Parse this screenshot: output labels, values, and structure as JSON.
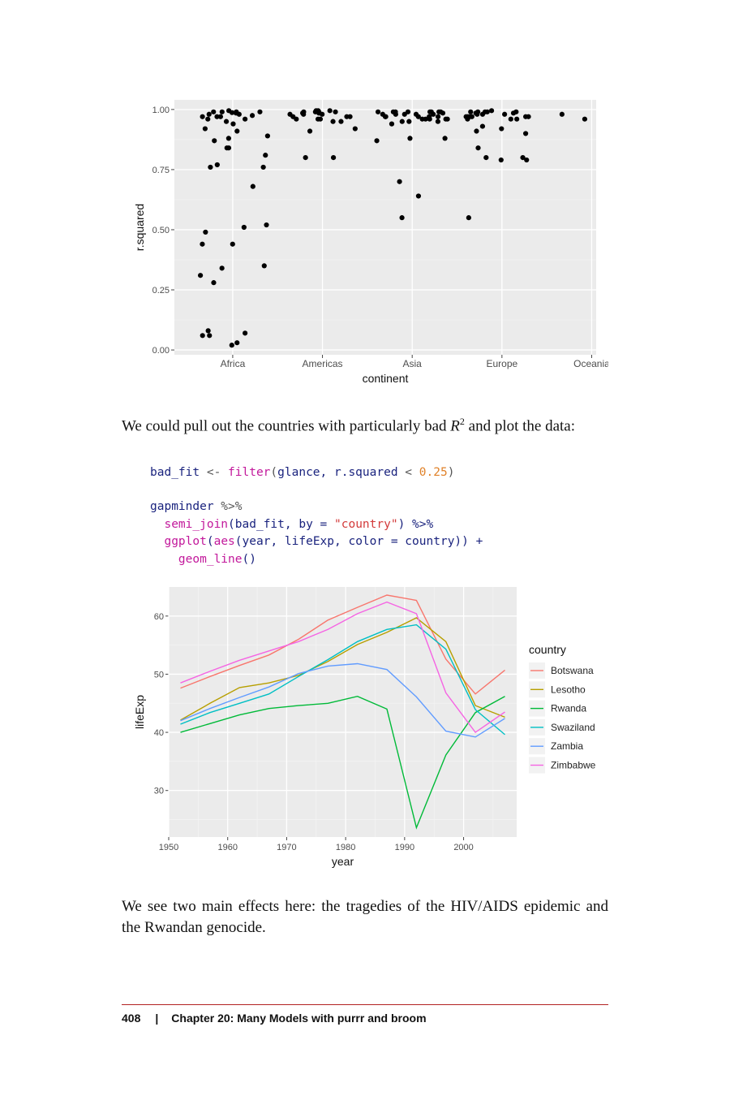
{
  "chart_data": [
    {
      "type": "scatter",
      "xlabel": "continent",
      "ylabel": "r.squared",
      "categories": [
        "Africa",
        "Americas",
        "Asia",
        "Europe",
        "Oceania"
      ],
      "ylim": [
        -0.02,
        1.04
      ],
      "yticks": [
        "0.00",
        "0.25",
        "0.50",
        "0.75",
        "1.00"
      ],
      "ytick_values": [
        0,
        0.25,
        0.5,
        0.75,
        1.0
      ],
      "grid": true,
      "series": [
        {
          "category": "Africa",
          "values": [
            0.987,
            0.91,
            0.92,
            0.87,
            0.88,
            0.94,
            0.97,
            0.99,
            0.98,
            0.95,
            0.77,
            0.68,
            0.51,
            0.44,
            0.44,
            0.28,
            0.07,
            0.08,
            0.03,
            0.02,
            0.06,
            0.31,
            0.35,
            0.52,
            0.49,
            0.84,
            0.81,
            0.76,
            0.84,
            0.99,
            0.96,
            0.97,
            0.98,
            0.89,
            0.995,
            0.99,
            0.985,
            0.97,
            0.96,
            0.975,
            0.99,
            0.34,
            0.06,
            0.76
          ]
        },
        {
          "category": "Americas",
          "values": [
            0.99,
            0.97,
            0.96,
            0.98,
            0.995,
            0.99,
            0.95,
            0.8,
            0.96,
            0.985,
            0.99,
            0.97,
            0.98,
            0.995,
            0.99,
            0.95,
            0.92,
            0.91,
            0.96,
            0.98,
            0.99,
            0.97,
            0.985,
            0.995,
            0.8
          ]
        },
        {
          "category": "Asia",
          "values": [
            0.99,
            0.96,
            0.97,
            0.98,
            0.99,
            0.95,
            0.96,
            0.985,
            0.97,
            0.99,
            0.96,
            0.98,
            0.99,
            0.7,
            0.55,
            0.94,
            0.98,
            0.96,
            0.97,
            0.99,
            0.88,
            0.87,
            0.95,
            0.97,
            0.99,
            0.98,
            0.96,
            0.95,
            0.99,
            0.64,
            0.88,
            0.97,
            0.98,
            0.99
          ]
        },
        {
          "category": "Europe",
          "values": [
            0.99,
            0.97,
            0.98,
            0.96,
            0.99,
            0.985,
            0.97,
            0.93,
            0.9,
            0.84,
            0.55,
            0.97,
            0.96,
            0.98,
            0.97,
            0.79,
            0.91,
            0.92,
            0.97,
            0.8,
            0.79,
            0.99,
            0.995,
            0.98,
            0.99,
            0.8,
            0.985,
            0.99,
            0.97,
            0.96
          ]
        },
        {
          "category": "Oceania",
          "values": [
            0.98,
            0.96
          ]
        }
      ]
    },
    {
      "type": "line",
      "xlabel": "year",
      "ylabel": "lifeExp",
      "x": [
        1952,
        1957,
        1962,
        1967,
        1972,
        1977,
        1982,
        1987,
        1992,
        1997,
        2002,
        2007
      ],
      "xlim": [
        1950,
        2009
      ],
      "ylim": [
        22,
        65
      ],
      "xticks": [
        1950,
        1960,
        1970,
        1980,
        1990,
        2000
      ],
      "yticks": [
        30,
        40,
        50,
        60
      ],
      "legend_title": "country",
      "legend_position": "right",
      "grid": true,
      "series": [
        {
          "name": "Botswana",
          "color": "#F8766D",
          "values": [
            47.6,
            49.6,
            51.5,
            53.3,
            56.0,
            59.3,
            61.5,
            63.6,
            62.7,
            52.6,
            46.6,
            50.7
          ]
        },
        {
          "name": "Lesotho",
          "color": "#B79F00",
          "values": [
            42.1,
            45.0,
            47.7,
            48.5,
            49.8,
            52.2,
            55.1,
            57.2,
            59.7,
            55.6,
            44.6,
            42.6
          ]
        },
        {
          "name": "Rwanda",
          "color": "#00BA38",
          "values": [
            40.0,
            41.5,
            43.0,
            44.1,
            44.6,
            45.0,
            46.2,
            44.0,
            23.6,
            36.1,
            43.4,
            46.2
          ]
        },
        {
          "name": "Swaziland",
          "color": "#00BFC4",
          "values": [
            41.4,
            43.4,
            44.99,
            46.6,
            49.6,
            52.5,
            55.6,
            57.7,
            58.5,
            54.3,
            43.9,
            39.6
          ]
        },
        {
          "name": "Zambia",
          "color": "#619CFF",
          "values": [
            42.0,
            44.1,
            46.0,
            47.8,
            50.1,
            51.4,
            51.8,
            50.8,
            46.1,
            40.2,
            39.2,
            42.4
          ]
        },
        {
          "name": "Zimbabwe",
          "color": "#F564E3",
          "values": [
            48.5,
            50.5,
            52.4,
            54.0,
            55.6,
            57.7,
            60.4,
            62.4,
            60.4,
            46.8,
            40.0,
            43.5
          ]
        }
      ]
    }
  ],
  "para1": {
    "before": "We could pull out the countries with particularly bad ",
    "r": "R",
    "sup": "2",
    "after": " and plot the data:"
  },
  "code1": {
    "var": "bad_fit",
    "assign": " <- ",
    "fn": "filter",
    "open": "(",
    "args": "glance, r.squared",
    "lt": " < ",
    "num": "0.25",
    "close": ")"
  },
  "code2": {
    "l1_name": "gapminder",
    "l1_pipe": " %>%",
    "l2_fn": "semi_join",
    "l2_a": "(bad_fit, by = ",
    "l2_str": "\"country\"",
    "l2_b": ") %>%",
    "l3_fn": "ggplot",
    "l3_open": "(",
    "l3_aes": "aes",
    "l3_args": "(year, lifeExp, color = country)) +",
    "l4_fn": "geom_line",
    "l4_rest": "()"
  },
  "para2": "We see two main effects here: the tragedies of the HIV/AIDS epidemic and the Rwandan genocide.",
  "footer": {
    "page": "408",
    "sep": "|",
    "chapter": "Chapter 20: Many Models with purrr and broom"
  }
}
